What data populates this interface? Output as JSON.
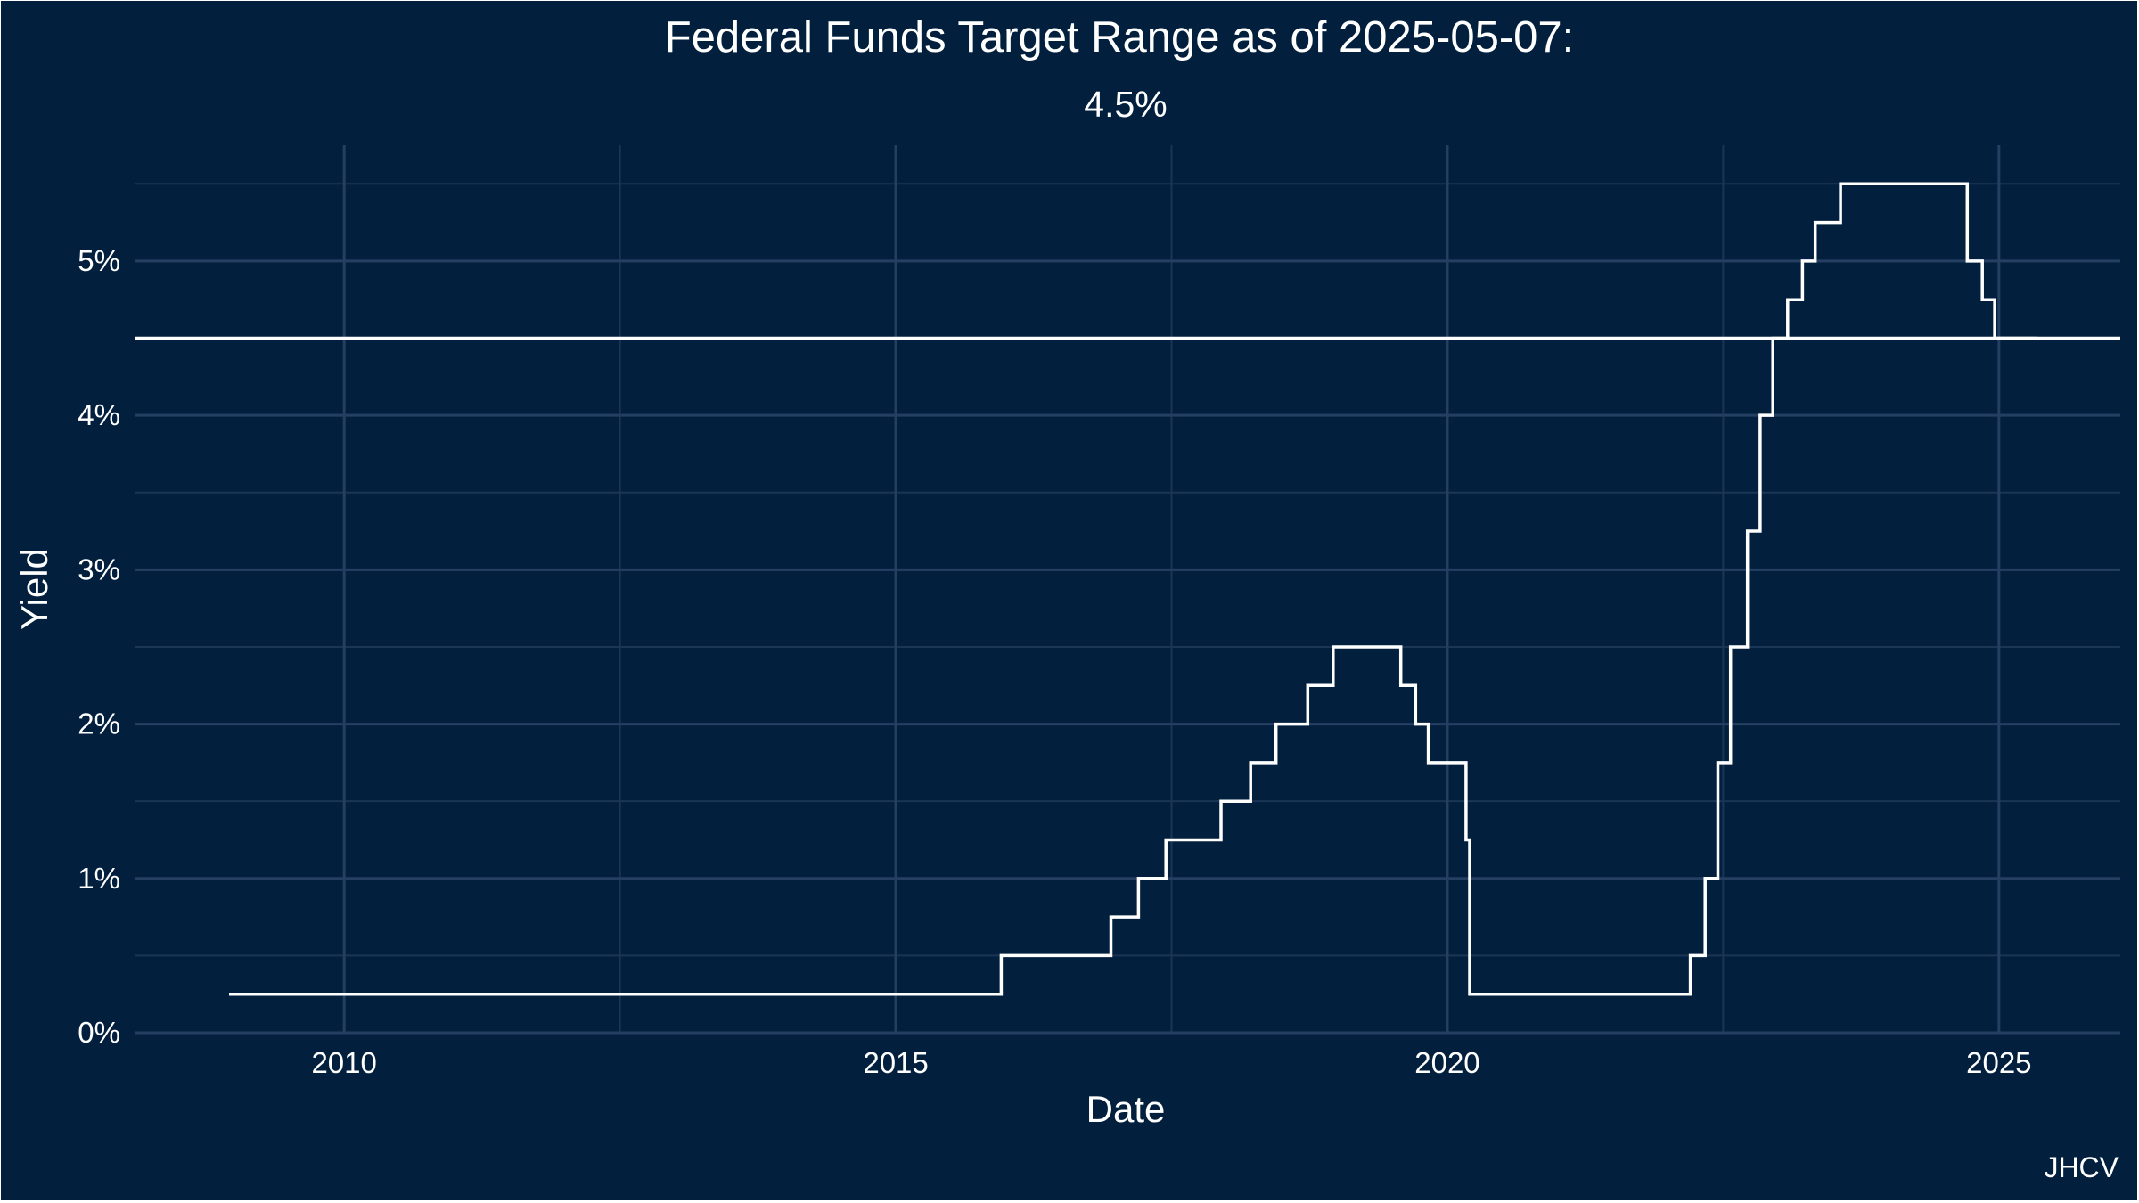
{
  "chart_data": {
    "type": "line",
    "step": true,
    "title": "Federal Funds Target Range as of 2025-05-07:",
    "subtitle": "4.5%",
    "xlabel": "Date",
    "ylabel": "Yield",
    "caption": "JHCV",
    "xlim": [
      2008.1,
      2026.1
    ],
    "ylim": [
      0,
      5.75
    ],
    "x_ticks": [
      {
        "value": 2010,
        "label": "2010"
      },
      {
        "value": 2015,
        "label": "2015"
      },
      {
        "value": 2020,
        "label": "2020"
      },
      {
        "value": 2025,
        "label": "2025"
      }
    ],
    "y_ticks": [
      {
        "value": 0,
        "label": "0%"
      },
      {
        "value": 1,
        "label": "1%"
      },
      {
        "value": 2,
        "label": "2%"
      },
      {
        "value": 3,
        "label": "3%"
      },
      {
        "value": 4,
        "label": "4%"
      },
      {
        "value": 5,
        "label": "5%"
      }
    ],
    "grid": true,
    "reference_line": {
      "y": 4.5
    },
    "series": [
      {
        "x": [
          "2008-12-16",
          "2015-12-16",
          "2016-12-14",
          "2017-03-15",
          "2017-06-14",
          "2017-12-13",
          "2018-03-21",
          "2018-06-13",
          "2018-09-26",
          "2018-12-19",
          "2019-07-31",
          "2019-09-18",
          "2019-10-30",
          "2020-03-03",
          "2020-03-15",
          "2022-03-16",
          "2022-05-04",
          "2022-06-15",
          "2022-07-27",
          "2022-09-21",
          "2022-11-02",
          "2022-12-14",
          "2023-02-01",
          "2023-03-22",
          "2023-05-03",
          "2023-07-26",
          "2024-09-18",
          "2024-11-07",
          "2024-12-18",
          "2025-05-07"
        ],
        "y": [
          0.25,
          0.5,
          0.75,
          1.0,
          1.25,
          1.5,
          1.75,
          2.0,
          2.25,
          2.5,
          2.25,
          2.0,
          1.75,
          1.25,
          0.25,
          0.5,
          1.0,
          1.75,
          2.5,
          3.25,
          4.0,
          4.5,
          4.75,
          5.0,
          5.25,
          5.5,
          5.0,
          4.75,
          4.5,
          4.5
        ]
      }
    ],
    "colors": {
      "background": "#02203e",
      "grid_major": "#253f63",
      "grid_minor": "#1a3556",
      "line": "#ffffff",
      "text": "#ffffff"
    }
  }
}
